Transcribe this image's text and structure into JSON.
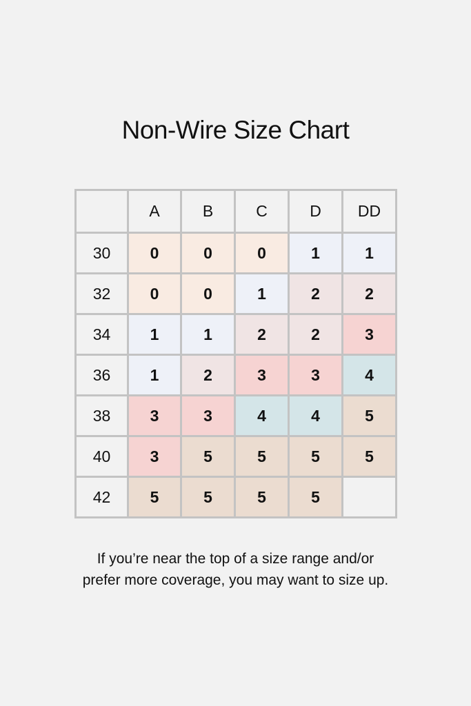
{
  "title": "Non-Wire Size Chart",
  "table": {
    "columns": [
      "",
      "A",
      "B",
      "C",
      "D",
      "DD"
    ],
    "rows": [
      {
        "band": "30",
        "values": [
          "0",
          "0",
          "0",
          "1",
          "1"
        ]
      },
      {
        "band": "32",
        "values": [
          "0",
          "0",
          "1",
          "2",
          "2"
        ]
      },
      {
        "band": "34",
        "values": [
          "1",
          "1",
          "2",
          "2",
          "3"
        ]
      },
      {
        "band": "36",
        "values": [
          "1",
          "2",
          "3",
          "3",
          "4"
        ]
      },
      {
        "band": "38",
        "values": [
          "3",
          "3",
          "4",
          "4",
          "5"
        ]
      },
      {
        "band": "40",
        "values": [
          "3",
          "5",
          "5",
          "5",
          "5"
        ]
      },
      {
        "band": "42",
        "values": [
          "5",
          "5",
          "5",
          "5",
          ""
        ]
      }
    ],
    "value_colors": {
      "0": "#f9ebe2",
      "1": "#eef1f8",
      "2": "#f0e4e4",
      "3": "#f6d3d2",
      "4": "#d4e5e8",
      "5": "#ebdcd0",
      "": "#f2f2f2"
    }
  },
  "note": {
    "line1": "If you’re near the top of a size range and/or",
    "line2": "prefer more coverage, you may want to size up."
  }
}
